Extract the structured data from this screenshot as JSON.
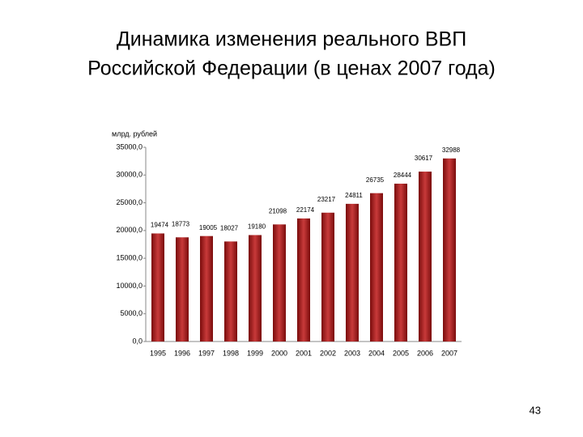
{
  "page_number": "43",
  "chart_data": {
    "type": "bar",
    "title": [
      "Динамика изменения реального ВВП",
      "Российской Федерации (в ценах 2007 года)"
    ],
    "y_label": "млрд. рублей",
    "categories": [
      "1995",
      "1996",
      "1997",
      "1998",
      "1999",
      "2000",
      "2001",
      "2002",
      "2003",
      "2004",
      "2005",
      "2006",
      "2007"
    ],
    "values": [
      19474,
      18773,
      19005,
      18027,
      19180,
      21098,
      22174,
      23217,
      24811,
      26735,
      28444,
      30617,
      32988
    ],
    "color": "#7a0c0c",
    "ylim": [
      0,
      35000
    ],
    "yticks": [
      {
        "value": 0,
        "label": "0,0"
      },
      {
        "value": 5000,
        "label": "5000,0"
      },
      {
        "value": 10000,
        "label": "10000,0"
      },
      {
        "value": 15000,
        "label": "15000,0"
      },
      {
        "value": 20000,
        "label": "20000,0"
      },
      {
        "value": 25000,
        "label": "25000,0"
      },
      {
        "value": 30000,
        "label": "30000,0"
      },
      {
        "value": 35000,
        "label": "35000,0"
      }
    ],
    "grid": false
  }
}
